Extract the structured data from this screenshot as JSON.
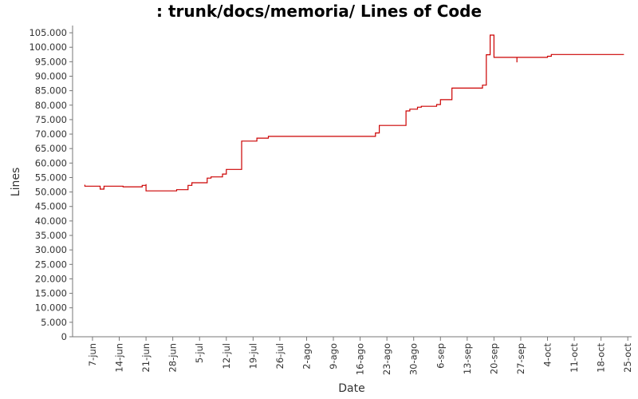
{
  "chart_data": {
    "type": "line",
    "title": ": trunk/docs/memoria/ Lines of Code",
    "xlabel": "Date",
    "ylabel": "Lines",
    "ylim": [
      0,
      107500
    ],
    "yticks": [
      0,
      5000,
      10000,
      15000,
      20000,
      25000,
      30000,
      35000,
      40000,
      45000,
      50000,
      55000,
      60000,
      65000,
      70000,
      75000,
      80000,
      85000,
      90000,
      95000,
      100000,
      105000
    ],
    "ytick_labels": [
      "0",
      "5.000",
      "10.000",
      "15.000",
      "20.000",
      "25.000",
      "30.000",
      "35.000",
      "40.000",
      "45.000",
      "50.000",
      "55.000",
      "60.000",
      "65.000",
      "70.000",
      "75.000",
      "80.000",
      "85.000",
      "90.000",
      "95.000",
      "100.000",
      "105.000"
    ],
    "xlim": [
      "2006-06-02",
      "2006-10-26"
    ],
    "xticks": [
      "2006-06-07",
      "2006-06-14",
      "2006-06-21",
      "2006-06-28",
      "2006-07-05",
      "2006-07-12",
      "2006-07-19",
      "2006-07-26",
      "2006-08-02",
      "2006-08-09",
      "2006-08-16",
      "2006-08-23",
      "2006-08-30",
      "2006-09-06",
      "2006-09-13",
      "2006-09-20",
      "2006-09-27",
      "2006-10-04",
      "2006-10-11",
      "2006-10-18",
      "2006-10-25"
    ],
    "xtick_labels": [
      "7-jun",
      "14-jun",
      "21-jun",
      "28-jun",
      "5-jul",
      "12-jul",
      "19-jul",
      "26-jul",
      "2-ago",
      "9-ago",
      "16-ago",
      "23-ago",
      "30-ago",
      "6-sep",
      "13-sep",
      "20-sep",
      "27-sep",
      "4-oct",
      "11-oct",
      "18-oct",
      "25-oct"
    ],
    "grid": false,
    "series": [
      {
        "color": "#cc0000",
        "style": "step",
        "points": [
          [
            "2006-06-05",
            52500
          ],
          [
            "2006-06-05",
            52000
          ],
          [
            "2006-06-09",
            52000
          ],
          [
            "2006-06-09",
            51000
          ],
          [
            "2006-06-10",
            51000
          ],
          [
            "2006-06-10",
            52000
          ],
          [
            "2006-06-15",
            52000
          ],
          [
            "2006-06-15",
            51800
          ],
          [
            "2006-06-20",
            51800
          ],
          [
            "2006-06-20",
            52300
          ],
          [
            "2006-06-21",
            52300
          ],
          [
            "2006-06-21",
            52700
          ],
          [
            "2006-06-21",
            50400
          ],
          [
            "2006-06-29",
            50400
          ],
          [
            "2006-06-29",
            50800
          ],
          [
            "2006-07-02",
            50800
          ],
          [
            "2006-07-02",
            52300
          ],
          [
            "2006-07-03",
            52300
          ],
          [
            "2006-07-03",
            53200
          ],
          [
            "2006-07-07",
            53200
          ],
          [
            "2006-07-07",
            54800
          ],
          [
            "2006-07-08",
            54800
          ],
          [
            "2006-07-08",
            55200
          ],
          [
            "2006-07-11",
            55200
          ],
          [
            "2006-07-11",
            56200
          ],
          [
            "2006-07-12",
            56200
          ],
          [
            "2006-07-12",
            57800
          ],
          [
            "2006-07-16",
            57800
          ],
          [
            "2006-07-16",
            60200
          ],
          [
            "2006-07-16",
            67600
          ],
          [
            "2006-07-20",
            67600
          ],
          [
            "2006-07-20",
            68600
          ],
          [
            "2006-07-23",
            68600
          ],
          [
            "2006-07-23",
            69200
          ],
          [
            "2006-08-20",
            69200
          ],
          [
            "2006-08-20",
            70400
          ],
          [
            "2006-08-21",
            70400
          ],
          [
            "2006-08-21",
            73000
          ],
          [
            "2006-08-28",
            73000
          ],
          [
            "2006-08-28",
            78000
          ],
          [
            "2006-08-29",
            78000
          ],
          [
            "2006-08-29",
            78600
          ],
          [
            "2006-08-31",
            78600
          ],
          [
            "2006-08-31",
            79300
          ],
          [
            "2006-09-01",
            79300
          ],
          [
            "2006-09-01",
            79600
          ],
          [
            "2006-09-05",
            79600
          ],
          [
            "2006-09-05",
            80200
          ],
          [
            "2006-09-06",
            80200
          ],
          [
            "2006-09-06",
            81900
          ],
          [
            "2006-09-09",
            81900
          ],
          [
            "2006-09-09",
            85900
          ],
          [
            "2006-09-17",
            85900
          ],
          [
            "2006-09-17",
            86900
          ],
          [
            "2006-09-18",
            86900
          ],
          [
            "2006-09-18",
            97400
          ],
          [
            "2006-09-19",
            97400
          ],
          [
            "2006-09-19",
            104200
          ],
          [
            "2006-09-20",
            104200
          ],
          [
            "2006-09-20",
            96500
          ],
          [
            "2006-09-26",
            96500
          ],
          [
            "2006-09-26",
            94800
          ],
          [
            "2006-09-26",
            96500
          ],
          [
            "2006-10-04",
            96500
          ],
          [
            "2006-10-04",
            96900
          ],
          [
            "2006-10-05",
            96900
          ],
          [
            "2006-10-05",
            97500
          ],
          [
            "2006-10-24",
            97500
          ]
        ]
      }
    ]
  }
}
